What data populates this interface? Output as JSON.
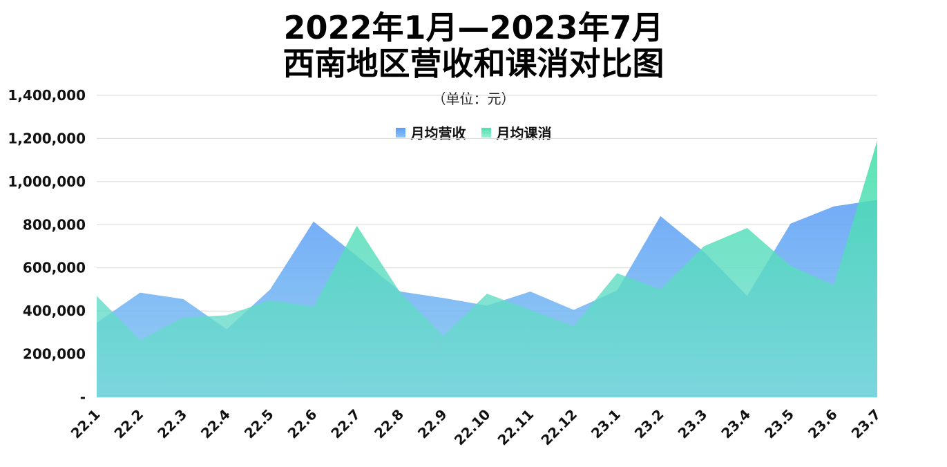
{
  "chart_data": {
    "type": "area",
    "title_line1": "2022年1月—2023年7月",
    "title_line2": "西南地区营收和课消对比图",
    "subtitle": "（单位：元）",
    "legend_position": "top-center",
    "grid": true,
    "ylim": [
      0,
      1400000
    ],
    "y_ticks": [
      0,
      200000,
      400000,
      600000,
      800000,
      1000000,
      1200000,
      1400000
    ],
    "y_tick_labels": [
      "-",
      "200,000",
      "400,000",
      "600,000",
      "800,000",
      "1,000,000",
      "1,200,000",
      "1,400,000"
    ],
    "categories": [
      "22.1",
      "22.2",
      "22.3",
      "22.4",
      "22.5",
      "22.6",
      "22.7",
      "22.8",
      "22.9",
      "22.10",
      "22.11",
      "22.12",
      "23.1",
      "23.2",
      "23.3",
      "23.4",
      "23.5",
      "23.6",
      "23.7"
    ],
    "series": [
      {
        "name": "月均营收",
        "color_top": "#5a9cf5",
        "color_bottom": "#82c8f0",
        "values": [
          345000,
          485000,
          455000,
          315000,
          500000,
          815000,
          655000,
          490000,
          460000,
          425000,
          490000,
          405000,
          495000,
          840000,
          675000,
          470000,
          805000,
          885000,
          915000
        ]
      },
      {
        "name": "月均课消",
        "color_top": "#5de3b2",
        "color_bottom": "#7fe0d8",
        "values": [
          470000,
          265000,
          370000,
          380000,
          450000,
          420000,
          795000,
          485000,
          285000,
          480000,
          405000,
          330000,
          575000,
          500000,
          700000,
          785000,
          610000,
          520000,
          1190000
        ]
      }
    ]
  }
}
